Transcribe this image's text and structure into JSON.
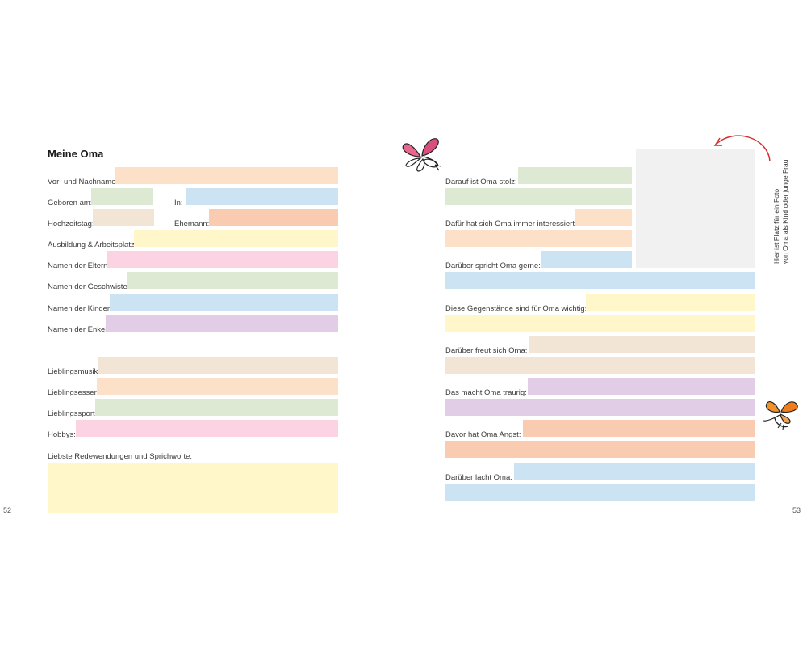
{
  "left_page": {
    "title": "Meine Oma",
    "page_number": "52",
    "labels": {
      "name": "Vor- und Nachname:",
      "born": "Geboren am:",
      "born_in": "In:",
      "wedding_day": "Hochzeitstag:",
      "husband": "Ehemann:",
      "education": "Ausbildung & Arbeitsplatz:",
      "parents": "Namen der Eltern:",
      "siblings": "Namen der Geschwister:",
      "children": "Namen der Kinder:",
      "grandchildren": "Namen der Enkel:",
      "music": "Lieblingsmusik:",
      "food": "Lieblingsessen:",
      "sport": "Lieblingssport:",
      "hobbies": "Hobbys:",
      "sayings": "Liebste Redewendungen und Sprichworte:"
    }
  },
  "right_page": {
    "page_number": "53",
    "photo_hint_line1": "Hier ist Platz für ein Foto",
    "photo_hint_line2": "von Oma als Kind oder junge Frau",
    "labels": {
      "proud": "Darauf ist Oma stolz:",
      "interested": "Dafür hat sich Oma immer interessiert:",
      "talks": "Darüber spricht Oma gerne:",
      "objects": "Diese Gegenstände sind für Oma wichtig:",
      "happy": "Darüber freut sich Oma:",
      "sad": "Das macht Oma traurig:",
      "afraid": "Davor hat Oma Angst:",
      "laughs": "Darüber lacht Oma:"
    }
  },
  "colors": {
    "peach": "#fde0c8",
    "sage": "#dde9d3",
    "sky": "#cce3f3",
    "beige": "#f3e5d5",
    "coral": "#f9cbb0",
    "cream": "#fff7c9",
    "pink": "#fbd3e2",
    "lilac": "#e2cde6",
    "arrow": "#d42a2a"
  },
  "icons": [
    "pink-butterfly-icon",
    "orange-butterfly-icon",
    "curved-arrow-icon"
  ]
}
